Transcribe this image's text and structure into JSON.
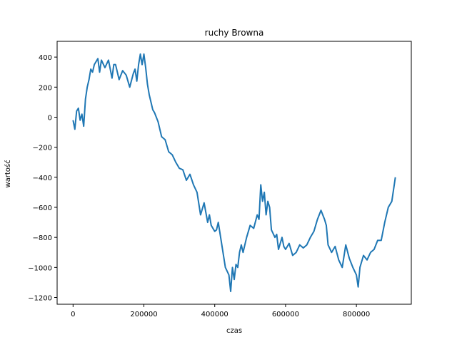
{
  "chart_data": {
    "type": "line",
    "title": "ruchy Browna",
    "xlabel": "czas",
    "ylabel": "wartość",
    "xlim": [
      -45000,
      955000
    ],
    "ylim": [
      -1245,
      505
    ],
    "xticks": [
      0,
      200000,
      400000,
      600000,
      800000
    ],
    "xtick_labels": [
      "0",
      "200000",
      "400000",
      "600000",
      "800000"
    ],
    "yticks": [
      -1200,
      -1000,
      -800,
      -600,
      -400,
      -200,
      0,
      200,
      400
    ],
    "ytick_labels": [
      "−1200",
      "−1000",
      "−800",
      "−600",
      "−400",
      "−200",
      "0",
      "200",
      "400"
    ],
    "grid": false,
    "color": "#1f77b4",
    "series": [
      {
        "x": [
          0,
          5000,
          10000,
          15000,
          20000,
          25000,
          30000,
          35000,
          40000,
          45000,
          50000,
          55000,
          60000,
          70000,
          75000,
          80000,
          90000,
          100000,
          110000,
          115000,
          120000,
          130000,
          140000,
          150000,
          160000,
          170000,
          175000,
          180000,
          185000,
          190000,
          195000,
          200000,
          205000,
          210000,
          215000,
          220000,
          225000,
          230000,
          240000,
          250000,
          260000,
          270000,
          280000,
          290000,
          300000,
          310000,
          320000,
          330000,
          340000,
          350000,
          360000,
          370000,
          380000,
          385000,
          390000,
          400000,
          405000,
          410000,
          420000,
          430000,
          440000,
          445000,
          450000,
          455000,
          460000,
          465000,
          470000,
          475000,
          480000,
          490000,
          500000,
          510000,
          520000,
          525000,
          530000,
          535000,
          540000,
          545000,
          550000,
          555000,
          560000,
          570000,
          575000,
          580000,
          590000,
          595000,
          600000,
          610000,
          620000,
          630000,
          640000,
          650000,
          660000,
          670000,
          680000,
          685000,
          690000,
          700000,
          710000,
          715000,
          720000,
          730000,
          740000,
          750000,
          760000,
          770000,
          780000,
          790000,
          800000,
          805000,
          810000,
          820000,
          830000,
          840000,
          850000,
          860000,
          870000,
          880000,
          890000,
          900000,
          905000,
          910000
        ],
        "y": [
          -20,
          -80,
          40,
          60,
          -20,
          20,
          -60,
          120,
          200,
          250,
          320,
          300,
          350,
          390,
          300,
          380,
          330,
          380,
          260,
          350,
          350,
          250,
          310,
          280,
          200,
          290,
          320,
          240,
          350,
          420,
          350,
          420,
          330,
          220,
          150,
          100,
          50,
          30,
          -30,
          -130,
          -150,
          -230,
          -250,
          -300,
          -340,
          -350,
          -420,
          -380,
          -450,
          -500,
          -650,
          -570,
          -700,
          -650,
          -720,
          -760,
          -750,
          -700,
          -850,
          -1000,
          -1050,
          -1160,
          -1000,
          -1080,
          -980,
          -1000,
          -900,
          -850,
          -900,
          -800,
          -720,
          -740,
          -650,
          -680,
          -450,
          -560,
          -500,
          -650,
          -560,
          -600,
          -750,
          -800,
          -780,
          -880,
          -800,
          -860,
          -880,
          -840,
          -920,
          -900,
          -850,
          -870,
          -850,
          -800,
          -760,
          -720,
          -680,
          -620,
          -680,
          -720,
          -850,
          -900,
          -860,
          -950,
          -1000,
          -850,
          -940,
          -1000,
          -1050,
          -1130,
          -1000,
          -920,
          -950,
          -900,
          -880,
          -820,
          -820,
          -700,
          -600,
          -560,
          -480,
          -400
        ]
      }
    ]
  }
}
